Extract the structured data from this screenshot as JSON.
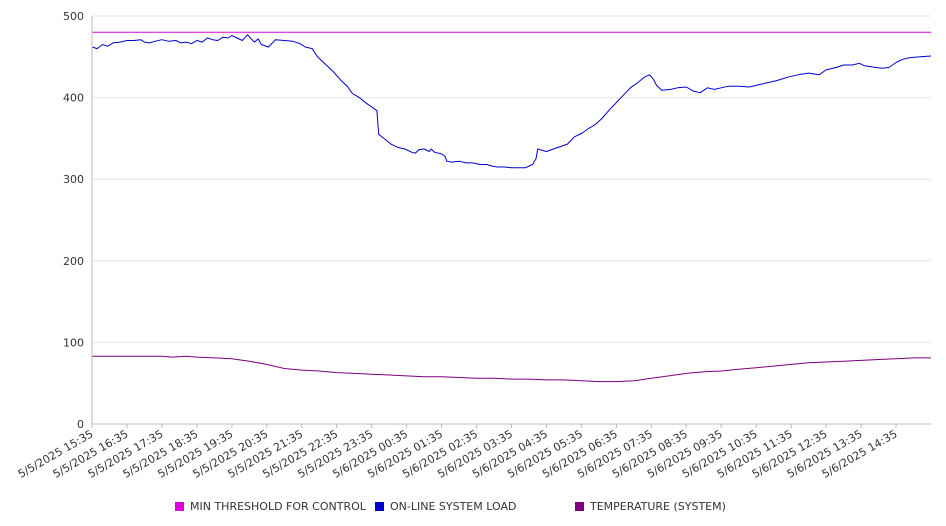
{
  "colors": {
    "threshold": "#dd00dd",
    "load": "#0000cc",
    "temperature": "#800080",
    "grid": "#e6e6e6",
    "axis": "#bbbbbb"
  },
  "chart_data": {
    "type": "line",
    "ylim": [
      0,
      500
    ],
    "yticks": [
      0,
      100,
      200,
      300,
      400,
      500
    ],
    "xticks": [
      "5/5/2025 15:35",
      "5/5/2025 16:35",
      "5/5/2025 17:35",
      "5/5/2025 18:35",
      "5/5/2025 19:35",
      "5/5/2025 20:35",
      "5/5/2025 21:35",
      "5/5/2025 22:35",
      "5/5/2025 23:35",
      "5/6/2025 00:35",
      "5/6/2025 01:35",
      "5/6/2025 02:35",
      "5/6/2025 03:35",
      "5/6/2025 04:35",
      "5/6/2025 05:35",
      "5/6/2025 06:35",
      "5/6/2025 07:35",
      "5/6/2025 08:35",
      "5/6/2025 09:35",
      "5/6/2025 10:35",
      "5/6/2025 11:35",
      "5/6/2025 12:35",
      "5/6/2025 13:35",
      "5/6/2025 14:35"
    ],
    "grid": true,
    "legend_position": "bottom",
    "series": [
      {
        "name": "MIN THRESHOLD FOR CONTROL",
        "color_key": "threshold",
        "points": [
          [
            0,
            480
          ],
          [
            24,
            480
          ]
        ]
      },
      {
        "name": "ON-LINE SYSTEM LOAD",
        "color_key": "load",
        "points": [
          [
            0,
            462
          ],
          [
            0.15,
            460
          ],
          [
            0.3,
            465
          ],
          [
            0.45,
            463
          ],
          [
            0.6,
            467
          ],
          [
            0.8,
            468
          ],
          [
            1.0,
            470
          ],
          [
            1.2,
            470
          ],
          [
            1.4,
            471
          ],
          [
            1.5,
            468
          ],
          [
            1.65,
            467
          ],
          [
            1.8,
            469
          ],
          [
            2.0,
            471
          ],
          [
            2.2,
            469
          ],
          [
            2.4,
            470
          ],
          [
            2.55,
            467
          ],
          [
            2.7,
            468
          ],
          [
            2.85,
            466
          ],
          [
            3.0,
            470
          ],
          [
            3.15,
            468
          ],
          [
            3.3,
            473
          ],
          [
            3.45,
            471
          ],
          [
            3.6,
            470
          ],
          [
            3.75,
            474
          ],
          [
            3.9,
            473
          ],
          [
            4.0,
            476
          ],
          [
            4.15,
            473
          ],
          [
            4.3,
            470
          ],
          [
            4.45,
            477
          ],
          [
            4.55,
            472
          ],
          [
            4.65,
            468
          ],
          [
            4.75,
            472
          ],
          [
            4.85,
            465
          ],
          [
            5.05,
            462
          ],
          [
            5.25,
            471
          ],
          [
            5.5,
            470
          ],
          [
            5.75,
            469
          ],
          [
            5.95,
            466
          ],
          [
            6.1,
            462
          ],
          [
            6.3,
            460
          ],
          [
            6.45,
            450
          ],
          [
            6.7,
            440
          ],
          [
            6.9,
            432
          ],
          [
            7.1,
            422
          ],
          [
            7.3,
            414
          ],
          [
            7.45,
            405
          ],
          [
            7.65,
            400
          ],
          [
            7.85,
            393
          ],
          [
            8.05,
            387
          ],
          [
            8.15,
            384
          ],
          [
            8.2,
            355
          ],
          [
            8.35,
            350
          ],
          [
            8.55,
            343
          ],
          [
            8.75,
            339
          ],
          [
            8.95,
            337
          ],
          [
            9.15,
            333
          ],
          [
            9.25,
            332
          ],
          [
            9.35,
            336
          ],
          [
            9.5,
            337
          ],
          [
            9.65,
            334
          ],
          [
            9.7,
            337
          ],
          [
            9.8,
            333
          ],
          [
            10.0,
            331
          ],
          [
            10.1,
            328
          ],
          [
            10.15,
            322
          ],
          [
            10.3,
            321
          ],
          [
            10.5,
            322
          ],
          [
            10.7,
            320
          ],
          [
            10.9,
            320
          ],
          [
            11.1,
            318
          ],
          [
            11.3,
            318
          ],
          [
            11.45,
            316
          ],
          [
            11.6,
            315
          ],
          [
            11.8,
            315
          ],
          [
            12.0,
            314
          ],
          [
            12.2,
            314
          ],
          [
            12.4,
            314
          ],
          [
            12.6,
            318
          ],
          [
            12.7,
            325
          ],
          [
            12.75,
            337
          ],
          [
            12.9,
            335
          ],
          [
            13.0,
            334
          ],
          [
            13.2,
            337
          ],
          [
            13.4,
            340
          ],
          [
            13.6,
            343
          ],
          [
            13.8,
            352
          ],
          [
            14.0,
            356
          ],
          [
            14.2,
            362
          ],
          [
            14.4,
            367
          ],
          [
            14.6,
            375
          ],
          [
            14.8,
            385
          ],
          [
            15.0,
            394
          ],
          [
            15.2,
            403
          ],
          [
            15.4,
            412
          ],
          [
            15.6,
            418
          ],
          [
            15.8,
            425
          ],
          [
            15.95,
            428
          ],
          [
            16.05,
            423
          ],
          [
            16.15,
            415
          ],
          [
            16.3,
            409
          ],
          [
            16.55,
            410
          ],
          [
            16.75,
            412
          ],
          [
            17.0,
            413
          ],
          [
            17.2,
            408
          ],
          [
            17.4,
            406
          ],
          [
            17.6,
            412
          ],
          [
            17.8,
            410
          ],
          [
            18.0,
            412
          ],
          [
            18.2,
            414
          ],
          [
            18.5,
            414
          ],
          [
            18.8,
            413
          ],
          [
            19.0,
            415
          ],
          [
            19.3,
            418
          ],
          [
            19.6,
            421
          ],
          [
            19.9,
            425
          ],
          [
            20.2,
            428
          ],
          [
            20.5,
            430
          ],
          [
            20.8,
            428
          ],
          [
            21.0,
            434
          ],
          [
            21.3,
            437
          ],
          [
            21.5,
            440
          ],
          [
            21.75,
            440
          ],
          [
            21.95,
            442
          ],
          [
            22.1,
            439
          ],
          [
            22.4,
            437
          ],
          [
            22.6,
            436
          ],
          [
            22.8,
            437
          ],
          [
            23.0,
            443
          ],
          [
            23.2,
            447
          ],
          [
            23.4,
            449
          ],
          [
            23.7,
            450
          ],
          [
            24.0,
            451
          ]
        ]
      },
      {
        "name": "TEMPERATURE (SYSTEM)",
        "color_key": "temperature",
        "points": [
          [
            0,
            83
          ],
          [
            1,
            83
          ],
          [
            2,
            83
          ],
          [
            2.3,
            82
          ],
          [
            2.7,
            83
          ],
          [
            3,
            82
          ],
          [
            3.5,
            81
          ],
          [
            4,
            80
          ],
          [
            4.5,
            77
          ],
          [
            5,
            73
          ],
          [
            5.5,
            68
          ],
          [
            6,
            66
          ],
          [
            6.5,
            65
          ],
          [
            7,
            63
          ],
          [
            7.5,
            62
          ],
          [
            8,
            61
          ],
          [
            8.5,
            60
          ],
          [
            9,
            59
          ],
          [
            9.5,
            58
          ],
          [
            10,
            58
          ],
          [
            10.5,
            57
          ],
          [
            11,
            56
          ],
          [
            11.5,
            56
          ],
          [
            12,
            55
          ],
          [
            12.5,
            55
          ],
          [
            13,
            54
          ],
          [
            13.5,
            54
          ],
          [
            14,
            53
          ],
          [
            14.5,
            52
          ],
          [
            15,
            52
          ],
          [
            15.5,
            53
          ],
          [
            16,
            56
          ],
          [
            16.5,
            59
          ],
          [
            17,
            62
          ],
          [
            17.5,
            64
          ],
          [
            18,
            65
          ],
          [
            18.5,
            67
          ],
          [
            19,
            69
          ],
          [
            19.5,
            71
          ],
          [
            20,
            73
          ],
          [
            20.5,
            75
          ],
          [
            21,
            76
          ],
          [
            21.5,
            77
          ],
          [
            22,
            78
          ],
          [
            22.5,
            79
          ],
          [
            23,
            80
          ],
          [
            23.5,
            81
          ],
          [
            24,
            81
          ]
        ]
      }
    ]
  }
}
